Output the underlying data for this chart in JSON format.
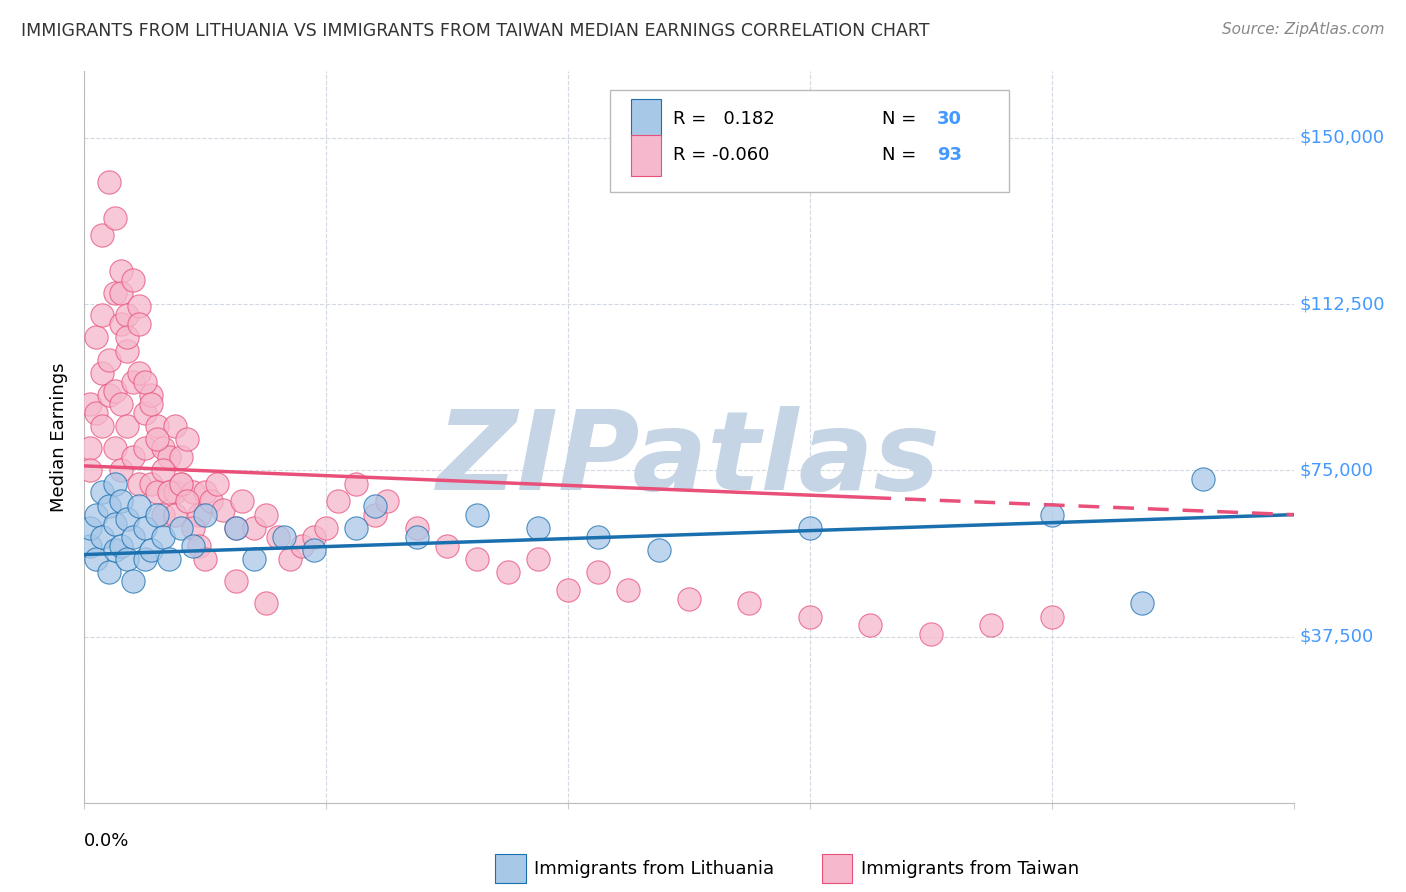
{
  "title": "IMMIGRANTS FROM LITHUANIA VS IMMIGRANTS FROM TAIWAN MEDIAN EARNINGS CORRELATION CHART",
  "source": "Source: ZipAtlas.com",
  "ylabel": "Median Earnings",
  "yticks": [
    0,
    37500,
    75000,
    112500,
    150000
  ],
  "ytick_labels": [
    "",
    "$37,500",
    "$75,000",
    "$112,500",
    "$150,000"
  ],
  "ylim": [
    0,
    165000
  ],
  "xlim": [
    0.0,
    0.2
  ],
  "color_lithuania": "#a8c8e8",
  "color_taiwan": "#f5b8cc",
  "line_color_lithuania": "#1a6faf",
  "line_color_taiwan": "#e8507a",
  "watermark": "ZIPatlas",
  "watermark_color": "#c5d5e5",
  "lith_trend_x0": 0.0,
  "lith_trend_y0": 56000,
  "lith_trend_x1": 0.2,
  "lith_trend_y1": 65000,
  "taiwan_trend_x0": 0.0,
  "taiwan_trend_y0": 76000,
  "taiwan_trend_x1": 0.2,
  "taiwan_trend_y1": 65000,
  "taiwan_trend_dash_start": 0.13,
  "lithuania_x": [
    0.001,
    0.001,
    0.002,
    0.002,
    0.003,
    0.003,
    0.004,
    0.004,
    0.005,
    0.005,
    0.005,
    0.006,
    0.006,
    0.007,
    0.007,
    0.008,
    0.008,
    0.009,
    0.01,
    0.01,
    0.011,
    0.012,
    0.013,
    0.014,
    0.016,
    0.018,
    0.02,
    0.025,
    0.028,
    0.033,
    0.038,
    0.045,
    0.048,
    0.055,
    0.065,
    0.075,
    0.085,
    0.095,
    0.12,
    0.16,
    0.175,
    0.185
  ],
  "lithuania_y": [
    58000,
    62000,
    55000,
    65000,
    60000,
    70000,
    52000,
    67000,
    57000,
    63000,
    72000,
    58000,
    68000,
    55000,
    64000,
    60000,
    50000,
    67000,
    55000,
    62000,
    57000,
    65000,
    60000,
    55000,
    62000,
    58000,
    65000,
    62000,
    55000,
    60000,
    57000,
    62000,
    67000,
    60000,
    65000,
    62000,
    60000,
    57000,
    62000,
    65000,
    45000,
    73000
  ],
  "taiwan_x": [
    0.001,
    0.001,
    0.001,
    0.002,
    0.002,
    0.003,
    0.003,
    0.003,
    0.004,
    0.004,
    0.005,
    0.005,
    0.005,
    0.006,
    0.006,
    0.006,
    0.007,
    0.007,
    0.008,
    0.008,
    0.009,
    0.009,
    0.01,
    0.01,
    0.011,
    0.011,
    0.012,
    0.012,
    0.013,
    0.013,
    0.014,
    0.015,
    0.015,
    0.016,
    0.016,
    0.017,
    0.018,
    0.019,
    0.02,
    0.021,
    0.022,
    0.023,
    0.025,
    0.026,
    0.028,
    0.03,
    0.032,
    0.034,
    0.036,
    0.038,
    0.04,
    0.042,
    0.045,
    0.048,
    0.05,
    0.055,
    0.06,
    0.065,
    0.07,
    0.075,
    0.08,
    0.085,
    0.09,
    0.1,
    0.11,
    0.12,
    0.13,
    0.14,
    0.15,
    0.16,
    0.003,
    0.004,
    0.005,
    0.006,
    0.006,
    0.007,
    0.007,
    0.008,
    0.009,
    0.009,
    0.01,
    0.011,
    0.012,
    0.013,
    0.014,
    0.015,
    0.016,
    0.017,
    0.018,
    0.019,
    0.02,
    0.025,
    0.03
  ],
  "taiwan_y": [
    80000,
    90000,
    75000,
    105000,
    88000,
    110000,
    97000,
    85000,
    100000,
    92000,
    115000,
    93000,
    80000,
    108000,
    90000,
    75000,
    102000,
    85000,
    95000,
    78000,
    97000,
    72000,
    88000,
    80000,
    92000,
    72000,
    85000,
    70000,
    80000,
    65000,
    78000,
    85000,
    70000,
    78000,
    72000,
    82000,
    70000,
    65000,
    70000,
    68000,
    72000,
    66000,
    62000,
    68000,
    62000,
    65000,
    60000,
    55000,
    58000,
    60000,
    62000,
    68000,
    72000,
    65000,
    68000,
    62000,
    58000,
    55000,
    52000,
    55000,
    48000,
    52000,
    48000,
    46000,
    45000,
    42000,
    40000,
    38000,
    40000,
    42000,
    128000,
    140000,
    132000,
    120000,
    115000,
    110000,
    105000,
    118000,
    112000,
    108000,
    95000,
    90000,
    82000,
    75000,
    70000,
    65000,
    72000,
    68000,
    62000,
    58000,
    55000,
    50000,
    45000
  ]
}
